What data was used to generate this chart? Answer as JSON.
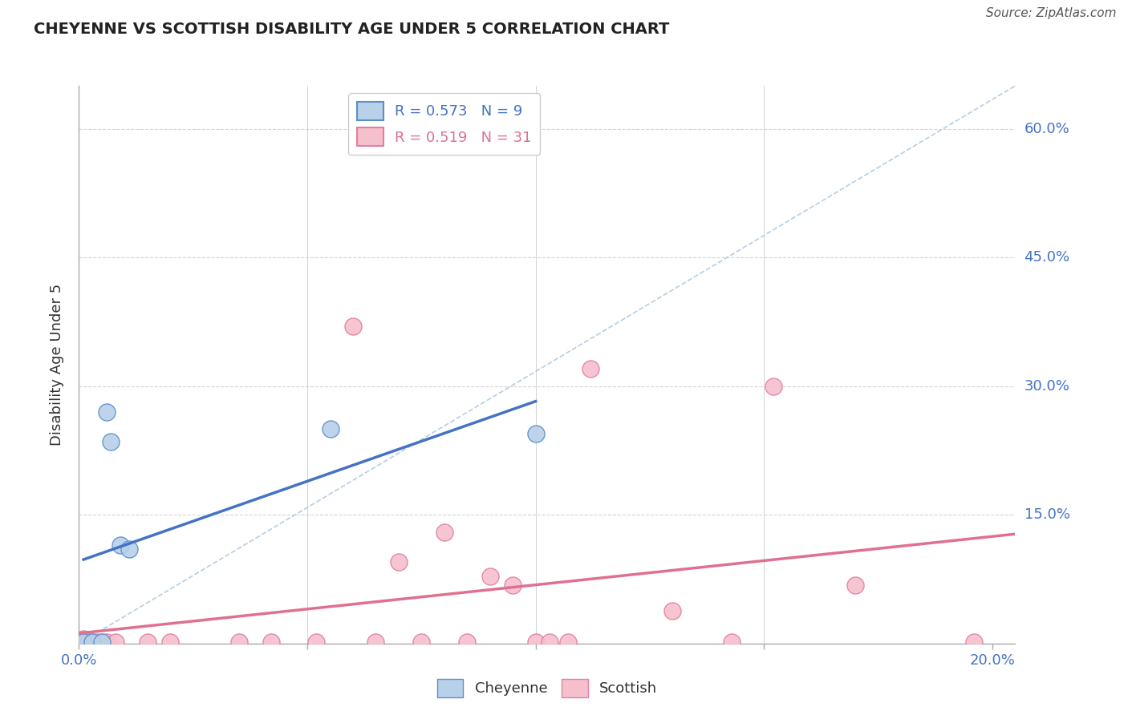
{
  "title": "CHEYENNE VS SCOTTISH DISABILITY AGE UNDER 5 CORRELATION CHART",
  "source": "Source: ZipAtlas.com",
  "ylabel": "Disability Age Under 5",
  "xlim": [
    0.0,
    0.205
  ],
  "ylim": [
    0.0,
    0.65
  ],
  "cheyenne_r": 0.573,
  "cheyenne_n": 9,
  "scottish_r": 0.519,
  "scottish_n": 31,
  "cheyenne_fill_color": "#b8d0e8",
  "scottish_fill_color": "#f5bfcc",
  "cheyenne_edge_color": "#5b8fcc",
  "scottish_edge_color": "#e080a0",
  "cheyenne_line_color": "#4472c4",
  "scottish_line_color": "#e07090",
  "diagonal_color": "#b0c8e0",
  "background_color": "#ffffff",
  "grid_color": "#d0d0d0",
  "cheyenne_x": [
    0.001,
    0.003,
    0.005,
    0.006,
    0.007,
    0.009,
    0.011,
    0.055,
    0.1
  ],
  "cheyenne_y": [
    0.002,
    0.002,
    0.002,
    0.27,
    0.235,
    0.115,
    0.11,
    0.25,
    0.245
  ],
  "scottish_x": [
    0.0,
    0.001,
    0.001,
    0.002,
    0.003,
    0.004,
    0.005,
    0.006,
    0.008,
    0.015,
    0.02,
    0.035,
    0.042,
    0.052,
    0.06,
    0.065,
    0.07,
    0.075,
    0.08,
    0.085,
    0.09,
    0.095,
    0.1,
    0.103,
    0.107,
    0.112,
    0.13,
    0.143,
    0.152,
    0.17,
    0.196
  ],
  "scottish_y": [
    0.002,
    0.002,
    0.005,
    0.002,
    0.002,
    0.002,
    0.002,
    0.002,
    0.002,
    0.002,
    0.002,
    0.002,
    0.002,
    0.002,
    0.37,
    0.002,
    0.095,
    0.002,
    0.13,
    0.002,
    0.078,
    0.068,
    0.002,
    0.002,
    0.002,
    0.32,
    0.038,
    0.002,
    0.3,
    0.068,
    0.002
  ]
}
